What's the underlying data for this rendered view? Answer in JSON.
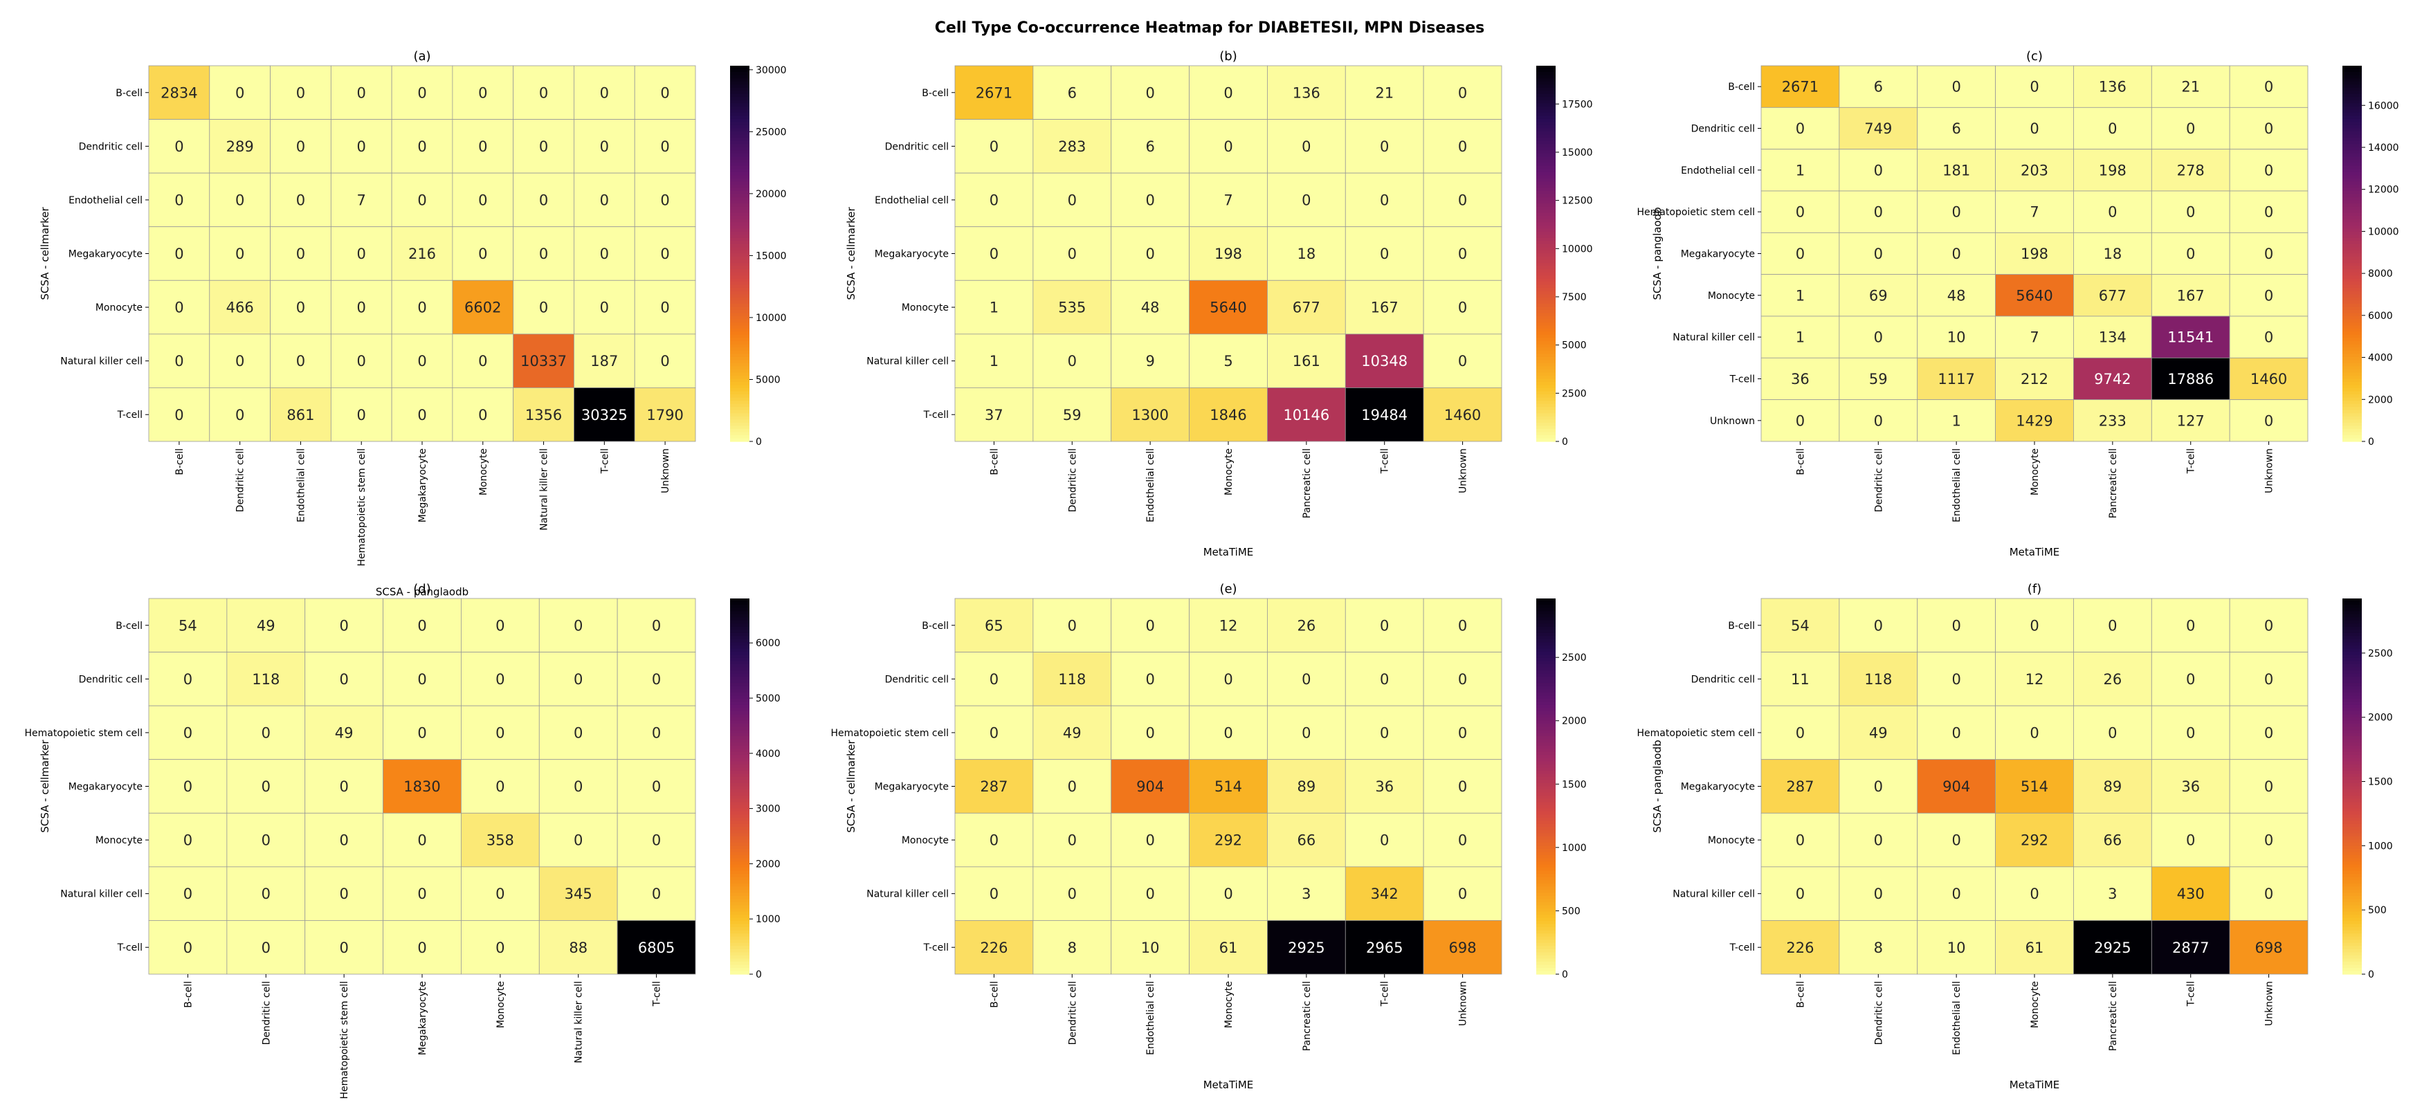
{
  "title": "Cell Type Co-occurrence Heatmap for DIABETESII, MPN Diseases",
  "chart_data": [
    {
      "type": "heatmap",
      "panel": "(a)",
      "xlabel": "SCSA - panglaodb",
      "ylabel": "SCSA - cellmarker",
      "rows": [
        "B-cell",
        "Dendritic cell",
        "Endothelial cell",
        "Megakaryocyte",
        "Monocyte",
        "Natural killer cell",
        "T-cell"
      ],
      "cols": [
        "B-cell",
        "Dendritic cell",
        "Endothelial cell",
        "Hematopoietic stem cell",
        "Megakaryocyte",
        "Monocyte",
        "Natural killer cell",
        "T-cell",
        "Unknown"
      ],
      "values": [
        [
          2834,
          0,
          0,
          0,
          0,
          0,
          0,
          0,
          0
        ],
        [
          0,
          289,
          0,
          0,
          0,
          0,
          0,
          0,
          0
        ],
        [
          0,
          0,
          0,
          7,
          0,
          0,
          0,
          0,
          0
        ],
        [
          0,
          0,
          0,
          0,
          216,
          0,
          0,
          0,
          0
        ],
        [
          0,
          466,
          0,
          0,
          0,
          6602,
          0,
          0,
          0
        ],
        [
          0,
          0,
          0,
          0,
          0,
          0,
          10337,
          187,
          0
        ],
        [
          0,
          0,
          861,
          0,
          0,
          0,
          1356,
          30325,
          1790
        ]
      ],
      "vmax": 30325,
      "colorbar_ticks": [
        "0",
        "5000",
        "10000",
        "15000",
        "20000",
        "25000",
        "30000"
      ],
      "colorbar_tick_values": [
        0,
        5000,
        10000,
        15000,
        20000,
        25000,
        30000
      ]
    },
    {
      "type": "heatmap",
      "panel": "(b)",
      "xlabel": "MetaTiME",
      "ylabel": "SCSA - cellmarker",
      "rows": [
        "B-cell",
        "Dendritic cell",
        "Endothelial cell",
        "Megakaryocyte",
        "Monocyte",
        "Natural killer cell",
        "T-cell"
      ],
      "cols": [
        "B-cell",
        "Dendritic cell",
        "Endothelial cell",
        "Monocyte",
        "Pancreatic cell",
        "T-cell",
        "Unknown"
      ],
      "values": [
        [
          2671,
          6,
          0,
          0,
          136,
          21,
          0
        ],
        [
          0,
          283,
          6,
          0,
          0,
          0,
          0
        ],
        [
          0,
          0,
          0,
          7,
          0,
          0,
          0
        ],
        [
          0,
          0,
          0,
          198,
          18,
          0,
          0
        ],
        [
          1,
          535,
          48,
          5640,
          677,
          167,
          0
        ],
        [
          1,
          0,
          9,
          5,
          161,
          10348,
          0
        ],
        [
          37,
          59,
          1300,
          1846,
          10146,
          19484,
          1460
        ]
      ],
      "vmax": 19484,
      "colorbar_ticks": [
        "0",
        "2500",
        "5000",
        "7500",
        "10000",
        "12500",
        "15000",
        "17500"
      ],
      "colorbar_tick_values": [
        0,
        2500,
        5000,
        7500,
        10000,
        12500,
        15000,
        17500
      ]
    },
    {
      "type": "heatmap",
      "panel": "(c)",
      "xlabel": "MetaTiME",
      "ylabel": "SCSA - panglaodb",
      "rows": [
        "B-cell",
        "Dendritic cell",
        "Endothelial cell",
        "Hematopoietic stem cell",
        "Megakaryocyte",
        "Monocyte",
        "Natural killer cell",
        "T-cell",
        "Unknown"
      ],
      "cols": [
        "B-cell",
        "Dendritic cell",
        "Endothelial cell",
        "Monocyte",
        "Pancreatic cell",
        "T-cell",
        "Unknown"
      ],
      "values": [
        [
          2671,
          6,
          0,
          0,
          136,
          21,
          0
        ],
        [
          0,
          749,
          6,
          0,
          0,
          0,
          0
        ],
        [
          1,
          0,
          181,
          203,
          198,
          278,
          0
        ],
        [
          0,
          0,
          0,
          7,
          0,
          0,
          0
        ],
        [
          0,
          0,
          0,
          198,
          18,
          0,
          0
        ],
        [
          1,
          69,
          48,
          5640,
          677,
          167,
          0
        ],
        [
          1,
          0,
          10,
          7,
          134,
          11541,
          0
        ],
        [
          36,
          59,
          1117,
          212,
          9742,
          17886,
          1460
        ],
        [
          0,
          0,
          1,
          1429,
          233,
          127,
          0
        ]
      ],
      "vmax": 17886,
      "colorbar_ticks": [
        "0",
        "2000",
        "4000",
        "6000",
        "8000",
        "10000",
        "12000",
        "14000",
        "16000"
      ],
      "colorbar_tick_values": [
        0,
        2000,
        4000,
        6000,
        8000,
        10000,
        12000,
        14000,
        16000
      ]
    },
    {
      "type": "heatmap",
      "panel": "(d)",
      "xlabel": "SCSA - panglaodb",
      "ylabel": "SCSA - cellmarker",
      "rows": [
        "B-cell",
        "Dendritic cell",
        "Hematopoietic stem cell",
        "Megakaryocyte",
        "Monocyte",
        "Natural killer cell",
        "T-cell"
      ],
      "cols": [
        "B-cell",
        "Dendritic cell",
        "Hematopoietic stem cell",
        "Megakaryocyte",
        "Monocyte",
        "Natural killer cell",
        "T-cell"
      ],
      "values": [
        [
          54,
          49,
          0,
          0,
          0,
          0,
          0
        ],
        [
          0,
          118,
          0,
          0,
          0,
          0,
          0
        ],
        [
          0,
          0,
          49,
          0,
          0,
          0,
          0
        ],
        [
          0,
          0,
          0,
          1830,
          0,
          0,
          0
        ],
        [
          0,
          0,
          0,
          0,
          358,
          0,
          0
        ],
        [
          0,
          0,
          0,
          0,
          0,
          345,
          0
        ],
        [
          0,
          0,
          0,
          0,
          0,
          88,
          6805
        ]
      ],
      "vmax": 6805,
      "colorbar_ticks": [
        "0",
        "1000",
        "2000",
        "3000",
        "4000",
        "5000",
        "6000"
      ],
      "colorbar_tick_values": [
        0,
        1000,
        2000,
        3000,
        4000,
        5000,
        6000
      ]
    },
    {
      "type": "heatmap",
      "panel": "(e)",
      "xlabel": "MetaTiME",
      "ylabel": "SCSA - cellmarker",
      "rows": [
        "B-cell",
        "Dendritic cell",
        "Hematopoietic stem cell",
        "Megakaryocyte",
        "Monocyte",
        "Natural killer cell",
        "T-cell"
      ],
      "cols": [
        "B-cell",
        "Dendritic cell",
        "Endothelial cell",
        "Monocyte",
        "Pancreatic cell",
        "T-cell",
        "Unknown"
      ],
      "values": [
        [
          65,
          0,
          0,
          12,
          26,
          0,
          0
        ],
        [
          0,
          118,
          0,
          0,
          0,
          0,
          0
        ],
        [
          0,
          49,
          0,
          0,
          0,
          0,
          0
        ],
        [
          287,
          0,
          904,
          514,
          89,
          36,
          0
        ],
        [
          0,
          0,
          0,
          292,
          66,
          0,
          0
        ],
        [
          0,
          0,
          0,
          0,
          3,
          342,
          0
        ],
        [
          226,
          8,
          10,
          61,
          2925,
          2965,
          698
        ]
      ],
      "vmax": 2965,
      "colorbar_ticks": [
        "0",
        "500",
        "1000",
        "1500",
        "2000",
        "2500"
      ],
      "colorbar_tick_values": [
        0,
        500,
        1000,
        1500,
        2000,
        2500
      ]
    },
    {
      "type": "heatmap",
      "panel": "(f)",
      "xlabel": "MetaTiME",
      "ylabel": "SCSA - panglaodb",
      "rows": [
        "B-cell",
        "Dendritic cell",
        "Hematopoietic stem cell",
        "Megakaryocyte",
        "Monocyte",
        "Natural killer cell",
        "T-cell"
      ],
      "cols": [
        "B-cell",
        "Dendritic cell",
        "Endothelial cell",
        "Monocyte",
        "Pancreatic cell",
        "T-cell",
        "Unknown"
      ],
      "values": [
        [
          54,
          0,
          0,
          0,
          0,
          0,
          0
        ],
        [
          11,
          118,
          0,
          12,
          26,
          0,
          0
        ],
        [
          0,
          49,
          0,
          0,
          0,
          0,
          0
        ],
        [
          287,
          0,
          904,
          514,
          89,
          36,
          0
        ],
        [
          0,
          0,
          0,
          292,
          66,
          0,
          0
        ],
        [
          0,
          0,
          0,
          0,
          3,
          430,
          0
        ],
        [
          226,
          8,
          10,
          61,
          2925,
          2877,
          698
        ]
      ],
      "vmax": 2925,
      "colorbar_ticks": [
        "0",
        "500",
        "1000",
        "1500",
        "2000",
        "2500"
      ],
      "colorbar_tick_values": [
        0,
        500,
        1000,
        1500,
        2000,
        2500
      ]
    }
  ],
  "colormap": [
    "#fcffa4",
    "#fac228",
    "#f57d15",
    "#d44842",
    "#9f2a63",
    "#65156e",
    "#280b53",
    "#000004"
  ]
}
